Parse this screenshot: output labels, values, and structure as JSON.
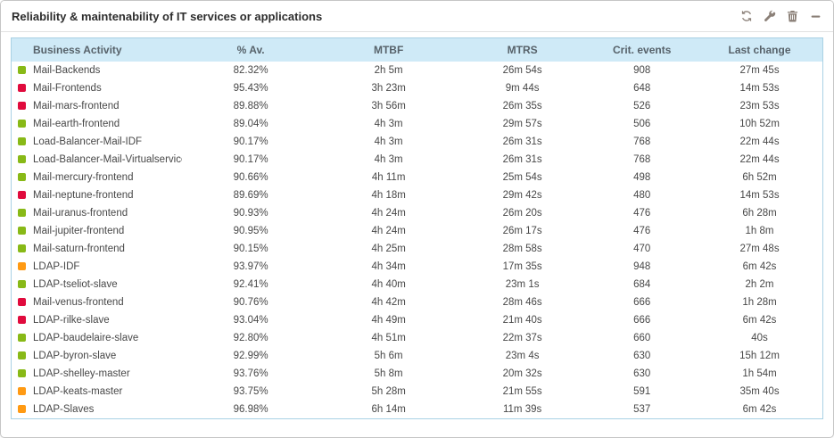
{
  "widget": {
    "title": "Reliability & maintenability of IT services or applications",
    "toolbar_icons": [
      "refresh-icon",
      "wrench-icon",
      "trash-icon",
      "minimize-icon"
    ]
  },
  "colors": {
    "status": {
      "ok": "#88b917",
      "critical": "#e00b3d",
      "warning": "#ff9a13"
    },
    "header_bg": "#cfeaf7",
    "table_border": "#a9d1e4",
    "icon": "#8b8078"
  },
  "table": {
    "columns": [
      {
        "key": "name",
        "label": "Business Activity"
      },
      {
        "key": "availability",
        "label": "% Av."
      },
      {
        "key": "mtbf",
        "label": "MTBF"
      },
      {
        "key": "mtrs",
        "label": "MTRS"
      },
      {
        "key": "crit_events",
        "label": "Crit. events"
      },
      {
        "key": "last_change",
        "label": "Last change"
      }
    ],
    "rows": [
      {
        "name": "Mail-Backends",
        "status": "ok",
        "availability": "82.32%",
        "mtbf": "2h 5m",
        "mtrs": "26m 54s",
        "crit_events": "908",
        "last_change": "27m 45s"
      },
      {
        "name": "Mail-Frontends",
        "status": "critical",
        "availability": "95.43%",
        "mtbf": "3h 23m",
        "mtrs": "9m 44s",
        "crit_events": "648",
        "last_change": "14m 53s"
      },
      {
        "name": "Mail-mars-frontend",
        "status": "critical",
        "availability": "89.88%",
        "mtbf": "3h 56m",
        "mtrs": "26m 35s",
        "crit_events": "526",
        "last_change": "23m 53s"
      },
      {
        "name": "Mail-earth-frontend",
        "status": "ok",
        "availability": "89.04%",
        "mtbf": "4h 3m",
        "mtrs": "29m 57s",
        "crit_events": "506",
        "last_change": "10h 52m"
      },
      {
        "name": "Load-Balancer-Mail-IDF",
        "status": "ok",
        "availability": "90.17%",
        "mtbf": "4h 3m",
        "mtrs": "26m 31s",
        "crit_events": "768",
        "last_change": "22m 44s"
      },
      {
        "name": "Load-Balancer-Mail-Virtualservice",
        "status": "ok",
        "availability": "90.17%",
        "mtbf": "4h 3m",
        "mtrs": "26m 31s",
        "crit_events": "768",
        "last_change": "22m 44s"
      },
      {
        "name": "Mail-mercury-frontend",
        "status": "ok",
        "availability": "90.66%",
        "mtbf": "4h 11m",
        "mtrs": "25m 54s",
        "crit_events": "498",
        "last_change": "6h 52m"
      },
      {
        "name": "Mail-neptune-frontend",
        "status": "critical",
        "availability": "89.69%",
        "mtbf": "4h 18m",
        "mtrs": "29m 42s",
        "crit_events": "480",
        "last_change": "14m 53s"
      },
      {
        "name": "Mail-uranus-frontend",
        "status": "ok",
        "availability": "90.93%",
        "mtbf": "4h 24m",
        "mtrs": "26m 20s",
        "crit_events": "476",
        "last_change": "6h 28m"
      },
      {
        "name": "Mail-jupiter-frontend",
        "status": "ok",
        "availability": "90.95%",
        "mtbf": "4h 24m",
        "mtrs": "26m 17s",
        "crit_events": "476",
        "last_change": "1h 8m"
      },
      {
        "name": "Mail-saturn-frontend",
        "status": "ok",
        "availability": "90.15%",
        "mtbf": "4h 25m",
        "mtrs": "28m 58s",
        "crit_events": "470",
        "last_change": "27m 48s"
      },
      {
        "name": "LDAP-IDF",
        "status": "warning",
        "availability": "93.97%",
        "mtbf": "4h 34m",
        "mtrs": "17m 35s",
        "crit_events": "948",
        "last_change": "6m 42s"
      },
      {
        "name": "LDAP-tseliot-slave",
        "status": "ok",
        "availability": "92.41%",
        "mtbf": "4h 40m",
        "mtrs": "23m 1s",
        "crit_events": "684",
        "last_change": "2h 2m"
      },
      {
        "name": "Mail-venus-frontend",
        "status": "critical",
        "availability": "90.76%",
        "mtbf": "4h 42m",
        "mtrs": "28m 46s",
        "crit_events": "666",
        "last_change": "1h 28m"
      },
      {
        "name": "LDAP-rilke-slave",
        "status": "critical",
        "availability": "93.04%",
        "mtbf": "4h 49m",
        "mtrs": "21m 40s",
        "crit_events": "666",
        "last_change": "6m 42s"
      },
      {
        "name": "LDAP-baudelaire-slave",
        "status": "ok",
        "availability": "92.80%",
        "mtbf": "4h 51m",
        "mtrs": "22m 37s",
        "crit_events": "660",
        "last_change": "40s"
      },
      {
        "name": "LDAP-byron-slave",
        "status": "ok",
        "availability": "92.99%",
        "mtbf": "5h 6m",
        "mtrs": "23m 4s",
        "crit_events": "630",
        "last_change": "15h 12m"
      },
      {
        "name": "LDAP-shelley-master",
        "status": "ok",
        "availability": "93.76%",
        "mtbf": "5h 8m",
        "mtrs": "20m 32s",
        "crit_events": "630",
        "last_change": "1h 54m"
      },
      {
        "name": "LDAP-keats-master",
        "status": "warning",
        "availability": "93.75%",
        "mtbf": "5h 28m",
        "mtrs": "21m 55s",
        "crit_events": "591",
        "last_change": "35m 40s"
      },
      {
        "name": "LDAP-Slaves",
        "status": "warning",
        "availability": "96.98%",
        "mtbf": "6h 14m",
        "mtrs": "11m 39s",
        "crit_events": "537",
        "last_change": "6m 42s"
      }
    ]
  }
}
